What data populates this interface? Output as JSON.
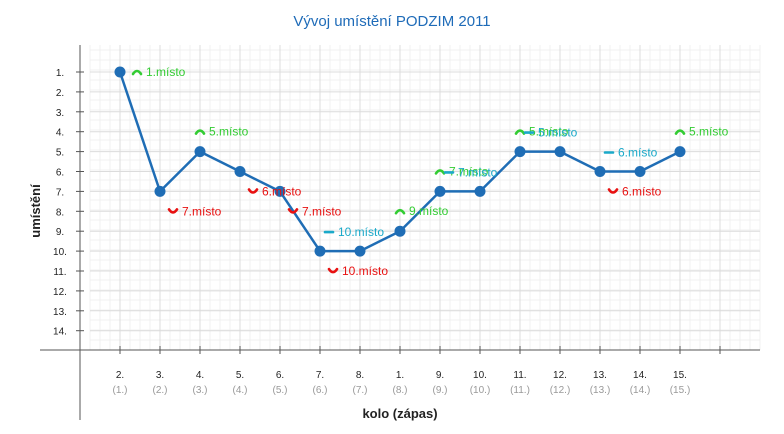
{
  "chart_data": {
    "type": "line",
    "title": "Vývoj umístění PODZIM 2011",
    "xlabel": "kolo (zápas)",
    "ylabel": "umístění",
    "y_reversed": true,
    "ylim": [
      1,
      14
    ],
    "yticks": [
      "1.",
      "2.",
      "3.",
      "4.",
      "5.",
      "6.",
      "7.",
      "8.",
      "9.",
      "10.",
      "11.",
      "12.",
      "13.",
      "14."
    ],
    "categories": [
      "2.",
      "3.",
      "4.",
      "5.",
      "6.",
      "7.",
      "8.",
      "1.",
      "9.",
      "10.",
      "11.",
      "12.",
      "13.",
      "14.",
      "15."
    ],
    "sub_categories": [
      "(1.)",
      "(2.)",
      "(3.)",
      "(4.)",
      "(5.)",
      "(6.)",
      "(7.)",
      "(8.)",
      "(9.)",
      "(10.)",
      "(11.)",
      "(12.)",
      "(13.)",
      "(14.)",
      "(15.)"
    ],
    "series": [
      {
        "values": [
          1,
          7,
          5,
          6,
          7,
          10,
          10,
          9,
          7,
          7,
          5,
          5,
          6,
          6,
          5
        ]
      }
    ],
    "annotations": [
      {
        "text": "1.místo",
        "trend": "up"
      },
      {
        "text": "7.místo",
        "trend": "down"
      },
      {
        "text": "5.místo",
        "trend": "up"
      },
      {
        "text": "6.místo",
        "trend": "down"
      },
      {
        "text": "7.místo",
        "trend": "down"
      },
      {
        "text": "10.místo",
        "trend": "down"
      },
      {
        "text": "10.místo",
        "trend": "same"
      },
      {
        "text": "9.místo",
        "trend": "up"
      },
      {
        "text": "7.místo",
        "trend": "up"
      },
      {
        "text": "7.místo",
        "trend": "same"
      },
      {
        "text": "5.místo",
        "trend": "up"
      },
      {
        "text": "5.místo",
        "trend": "same"
      },
      {
        "text": "6.místo",
        "trend": "down"
      },
      {
        "text": "6.místo",
        "trend": "same"
      },
      {
        "text": "5.místo",
        "trend": "up"
      }
    ],
    "grid": true,
    "colors": {
      "line": "#1f6db5",
      "up": "#33cc33",
      "down": "#e81111",
      "same": "#1aa9c9",
      "title": "#1e6bb8"
    }
  }
}
